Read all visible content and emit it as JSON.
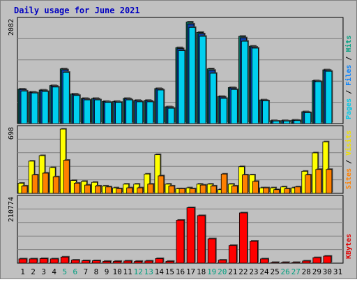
{
  "chart_data": {
    "type": "bar",
    "title": "Daily usage for June 2021",
    "categories": [
      "1",
      "2",
      "3",
      "4",
      "5",
      "6",
      "7",
      "8",
      "9",
      "10",
      "11",
      "12",
      "13",
      "14",
      "15",
      "16",
      "17",
      "18",
      "19",
      "20",
      "21",
      "22",
      "23",
      "24",
      "25",
      "26",
      "27",
      "28",
      "29",
      "30",
      "31"
    ],
    "weekend_days": [
      "5",
      "6",
      "12",
      "13",
      "19",
      "20",
      "26",
      "27"
    ],
    "panels": [
      {
        "name": "hits-files-pages",
        "ymax_label": "2082",
        "ymax": 2082,
        "right_label": [
          {
            "text": "Pages",
            "color": "#00c8e6"
          },
          {
            "text": " / ",
            "color": "#000000"
          },
          {
            "text": "Files",
            "color": "#0080ff"
          },
          {
            "text": " / ",
            "color": "#000000"
          },
          {
            "text": "Hits",
            "color": "#00a080"
          }
        ],
        "series": [
          {
            "key": "hits",
            "color": "#0b6b5b",
            "values": [
              700,
              640,
              680,
              770,
              1110,
              600,
              510,
              510,
              450,
              450,
              510,
              470,
              470,
              710,
              340,
              1540,
              2060,
              1850,
              1110,
              550,
              730,
              1770,
              1570,
              480,
              60,
              60,
              70,
              240,
              870,
              1090,
              0
            ]
          },
          {
            "key": "files",
            "color": "#0a3ea8",
            "values": [
              690,
              630,
              670,
              760,
              1090,
              590,
              500,
              500,
              440,
              440,
              500,
              460,
              460,
              700,
              330,
              1520,
              2020,
              1820,
              1080,
              540,
              720,
              1740,
              1550,
              470,
              50,
              55,
              65,
              230,
              860,
              1080,
              0
            ]
          },
          {
            "key": "pages",
            "color": "#00cfef",
            "values": [
              660,
              620,
              650,
              740,
              1040,
              570,
              480,
              480,
              430,
              430,
              480,
              440,
              440,
              680,
              310,
              1480,
              1950,
              1770,
              1020,
              510,
              690,
              1670,
              1530,
              460,
              50,
              50,
              60,
              220,
              850,
              1060,
              0
            ]
          }
        ]
      },
      {
        "name": "visits-sites",
        "ymax_label": "698",
        "ymax": 698,
        "right_label": [
          {
            "text": "Sites",
            "color": "#ff8000"
          },
          {
            "text": " / ",
            "color": "#000000"
          },
          {
            "text": "Visits",
            "color": "#f0e000"
          }
        ],
        "series": [
          {
            "key": "visits",
            "color": "#ffff00",
            "values": [
              110,
              350,
              410,
              280,
              698,
              140,
              130,
              120,
              80,
              60,
              100,
              100,
              210,
              420,
              100,
              50,
              60,
              100,
              100,
              40,
              100,
              290,
              200,
              60,
              60,
              70,
              60,
              240,
              440,
              560,
              0
            ]
          },
          {
            "key": "sites",
            "color": "#ff8000",
            "values": [
              80,
              200,
              220,
              180,
              360,
              110,
              90,
              80,
              70,
              50,
              60,
              60,
              100,
              190,
              80,
              50,
              50,
              90,
              80,
              210,
              80,
              200,
              130,
              60,
              40,
              50,
              70,
              200,
              260,
              260,
              0
            ]
          }
        ]
      },
      {
        "name": "kbytes",
        "ymax_label": "210774",
        "ymax": 210774,
        "right_label": [
          {
            "text": "KBytes",
            "color": "#e00000"
          }
        ],
        "series": [
          {
            "key": "kbytes",
            "color": "#ff0000",
            "values": [
              14000,
              14000,
              15000,
              14000,
              20000,
              10000,
              8000,
              8000,
              6000,
              6000,
              7000,
              6000,
              7000,
              15000,
              6000,
              141000,
              182000,
              156000,
              80000,
              10000,
              58000,
              165000,
              72000,
              14000,
              900,
              900,
              900,
              7000,
              18000,
              23000,
              0
            ]
          }
        ]
      }
    ]
  }
}
